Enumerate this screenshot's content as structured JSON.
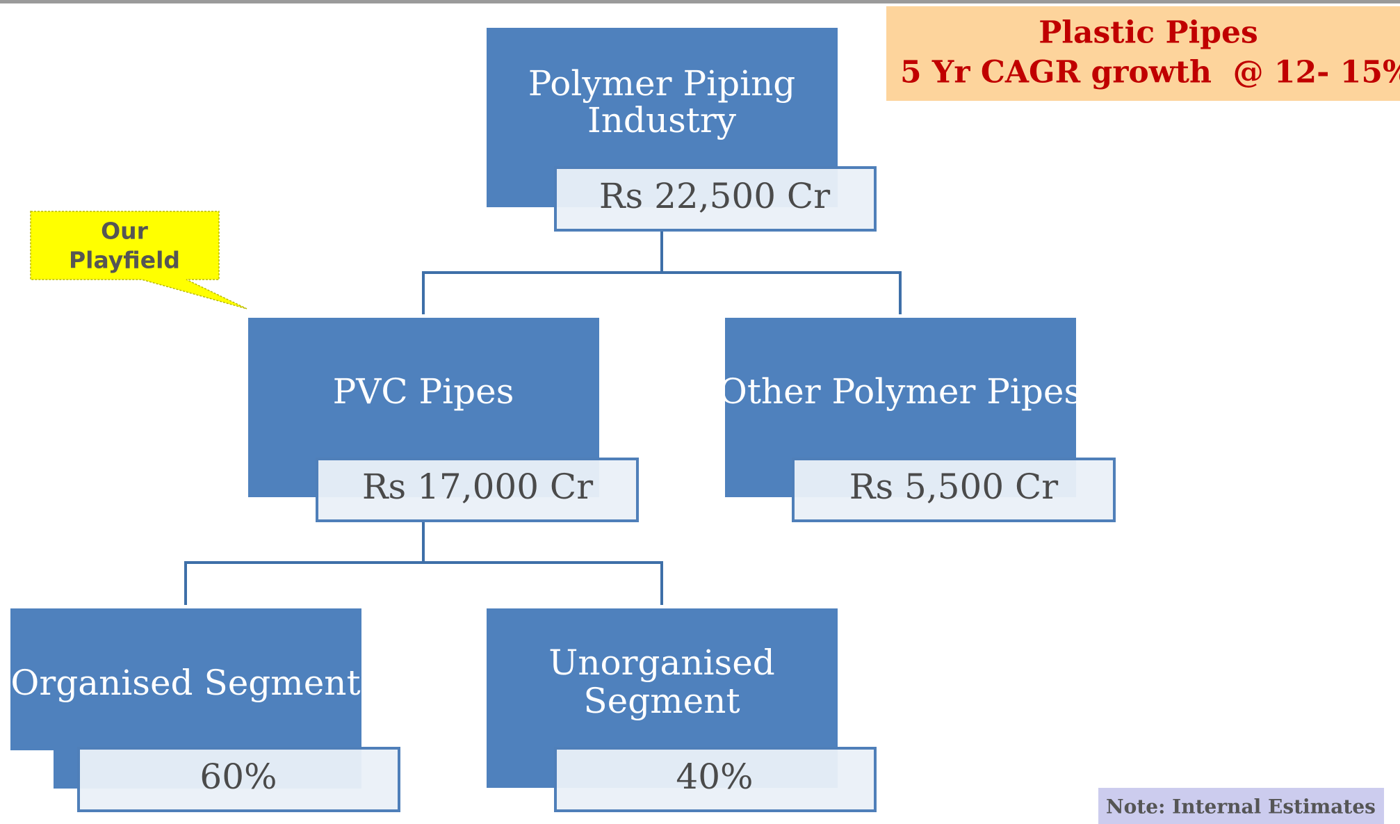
{
  "header": {
    "title": "Plastic Pipes",
    "subtitle": "5 Yr CAGR growth  @ 12- 15%"
  },
  "callout": {
    "lines": [
      "Our",
      "Playfield"
    ]
  },
  "nodes": [
    {
      "lines": [
        "Polymer Piping",
        "Industry"
      ],
      "value": "Rs 22,500 Cr"
    },
    {
      "lines": [
        "PVC Pipes"
      ],
      "value": "Rs 17,000 Cr"
    },
    {
      "lines": [
        "Other Polymer Pipes"
      ],
      "value": "Rs 5,500 Cr"
    },
    {
      "lines": [
        "Organised Segment"
      ],
      "value": "60%"
    },
    {
      "lines": [
        "Unorganised",
        "Segment"
      ],
      "value": "40%"
    }
  ],
  "note": "Note: Internal Estimates"
}
